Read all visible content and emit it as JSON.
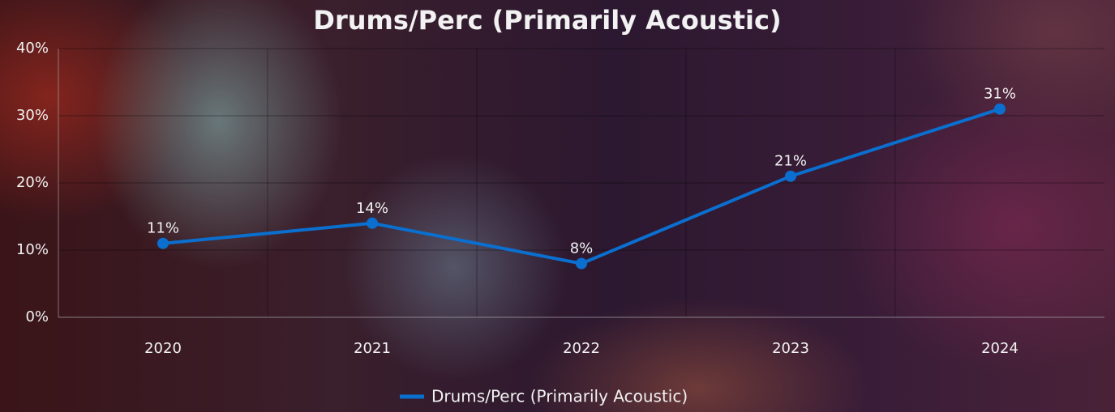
{
  "chart_data": {
    "type": "line",
    "title": "Drums/Perc (Primarily Acoustic)",
    "categories": [
      "2020",
      "2021",
      "2022",
      "2023",
      "2024"
    ],
    "series": [
      {
        "name": "Drums/Perc (Primarily Acoustic)",
        "color": "#0a6fcf",
        "values": [
          11,
          14,
          8,
          21,
          31
        ],
        "value_labels": [
          "11%",
          "14%",
          "8%",
          "21%",
          "31%"
        ]
      }
    ],
    "ylim": [
      0,
      40
    ],
    "yticks": [
      {
        "value": 0,
        "label": "0%"
      },
      {
        "value": 10,
        "label": "10%"
      },
      {
        "value": 20,
        "label": "20%"
      },
      {
        "value": 30,
        "label": "30%"
      },
      {
        "value": 40,
        "label": "40%"
      }
    ],
    "grid": true,
    "legend": "bottom"
  }
}
